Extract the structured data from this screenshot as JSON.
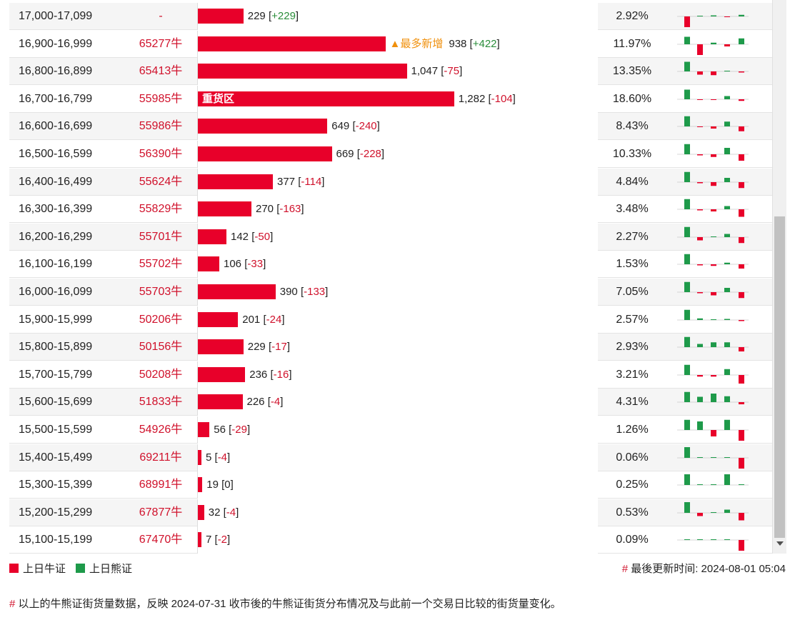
{
  "rows": [
    {
      "range": "17,000-17,099",
      "code": "-",
      "value": "229",
      "change": "+229",
      "pct": "2.92%",
      "bar": 0.051,
      "tag": "",
      "label": "",
      "spark": [
        -1,
        0,
        0.1,
        -0.05,
        0.15
      ]
    },
    {
      "range": "16,900-16,999",
      "code": "65277牛",
      "value": "938",
      "change": "+422",
      "pct": "11.97%",
      "bar": 0.21,
      "tag": "▲最多新增",
      "label": "",
      "spark": [
        0.7,
        -1,
        0.15,
        -0.2,
        0.55
      ]
    },
    {
      "range": "16,800-16,899",
      "code": "65413牛",
      "value": "1,047",
      "change": "-75",
      "pct": "13.35%",
      "bar": 0.234,
      "tag": "",
      "label": "",
      "spark": [
        0.9,
        -0.3,
        -0.35,
        0.05,
        -0.1
      ]
    },
    {
      "range": "16,700-16,799",
      "code": "55985牛",
      "value": "1,282",
      "change": "-104",
      "pct": "18.60%",
      "bar": 0.287,
      "tag": "",
      "label": "重货区",
      "spark": [
        0.9,
        -0.05,
        -0.05,
        0.3,
        -0.15
      ]
    },
    {
      "range": "16,600-16,699",
      "code": "55986牛",
      "value": "649",
      "change": "-240",
      "pct": "8.43%",
      "bar": 0.145,
      "tag": "",
      "label": "",
      "spark": [
        0.95,
        -0.05,
        -0.2,
        0.45,
        -0.45
      ]
    },
    {
      "range": "16,500-16,599",
      "code": "56390牛",
      "value": "669",
      "change": "-228",
      "pct": "10.33%",
      "bar": 0.15,
      "tag": "",
      "label": "",
      "spark": [
        0.95,
        -0.1,
        -0.25,
        0.6,
        -0.6
      ]
    },
    {
      "range": "16,400-16,499",
      "code": "55624牛",
      "value": "377",
      "change": "-114",
      "pct": "4.84%",
      "bar": 0.084,
      "tag": "",
      "label": "",
      "spark": [
        0.95,
        -0.1,
        -0.35,
        0.4,
        -0.55
      ]
    },
    {
      "range": "16,300-16,399",
      "code": "55829牛",
      "value": "270",
      "change": "-163",
      "pct": "3.48%",
      "bar": 0.06,
      "tag": "",
      "label": "",
      "spark": [
        0.95,
        -0.1,
        -0.2,
        0.3,
        -0.7
      ]
    },
    {
      "range": "16,200-16,299",
      "code": "55701牛",
      "value": "142",
      "change": "-50",
      "pct": "2.27%",
      "bar": 0.032,
      "tag": "",
      "label": "",
      "spark": [
        0.95,
        -0.3,
        0,
        0.3,
        -0.55
      ]
    },
    {
      "range": "16,100-16,199",
      "code": "55702牛",
      "value": "106",
      "change": "-33",
      "pct": "1.53%",
      "bar": 0.024,
      "tag": "",
      "label": "",
      "spark": [
        0.95,
        -0.1,
        -0.15,
        0.15,
        -0.4
      ]
    },
    {
      "range": "16,000-16,099",
      "code": "55703牛",
      "value": "390",
      "change": "-133",
      "pct": "7.05%",
      "bar": 0.087,
      "tag": "",
      "label": "",
      "spark": [
        0.95,
        -0.1,
        -0.3,
        0.4,
        -0.55
      ]
    },
    {
      "range": "15,900-15,999",
      "code": "50206牛",
      "value": "201",
      "change": "-24",
      "pct": "2.57%",
      "bar": 0.045,
      "tag": "",
      "label": "",
      "spark": [
        0.95,
        0.15,
        0.05,
        0.1,
        -0.1
      ]
    },
    {
      "range": "15,800-15,899",
      "code": "50156牛",
      "value": "229",
      "change": "-17",
      "pct": "2.93%",
      "bar": 0.051,
      "tag": "",
      "label": "",
      "spark": [
        0.95,
        0.3,
        0.45,
        0.45,
        -0.4
      ]
    },
    {
      "range": "15,700-15,799",
      "code": "50208牛",
      "value": "236",
      "change": "-16",
      "pct": "3.21%",
      "bar": 0.053,
      "tag": "",
      "label": "",
      "spark": [
        0.95,
        -0.15,
        -0.15,
        0.55,
        -0.8
      ]
    },
    {
      "range": "15,600-15,699",
      "code": "51833牛",
      "value": "226",
      "change": "-4",
      "pct": "4.31%",
      "bar": 0.05,
      "tag": "",
      "label": "",
      "spark": [
        0.95,
        0.5,
        0.8,
        0.55,
        -0.2
      ]
    },
    {
      "range": "15,500-15,599",
      "code": "54926牛",
      "value": "56",
      "change": "-29",
      "pct": "1.26%",
      "bar": 0.013,
      "tag": "",
      "label": "",
      "spark": [
        0.95,
        0.8,
        -0.6,
        0.95,
        -1
      ]
    },
    {
      "range": "15,400-15,499",
      "code": "69211牛",
      "value": "5",
      "change": "-4",
      "pct": "0.06%",
      "bar": 0.004,
      "tag": "",
      "label": "",
      "spark": [
        1,
        0,
        0,
        0,
        -1
      ]
    },
    {
      "range": "15,300-15,399",
      "code": "68991牛",
      "value": "19",
      "change": "0",
      "pct": "0.25%",
      "bar": 0.005,
      "tag": "",
      "label": "",
      "spark": [
        1,
        0,
        0,
        1,
        0
      ]
    },
    {
      "range": "15,200-15,299",
      "code": "67877牛",
      "value": "32",
      "change": "-4",
      "pct": "0.53%",
      "bar": 0.007,
      "tag": "",
      "label": "",
      "spark": [
        1,
        -0.3,
        0,
        0.3,
        -0.7
      ]
    },
    {
      "range": "15,100-15,199",
      "code": "67470牛",
      "value": "7",
      "change": "-2",
      "pct": "0.09%",
      "bar": 0.004,
      "tag": "",
      "label": "",
      "spark": [
        0,
        0,
        0,
        0,
        -1
      ]
    }
  ],
  "legend": {
    "bull": "上日牛证",
    "bear": "上日熊证"
  },
  "updated": {
    "hash": "#",
    "text": "最後更新时间: 2024-08-01 05:04"
  },
  "footnote": {
    "hash": "#",
    "text": "以上的牛熊证街货量数据，反映 2024-07-31 收市後的牛熊证街货分布情况及与此前一个交易日比较的街货量变化。"
  },
  "colors": {
    "bull": "#e8002a",
    "bear": "#1e9a4a",
    "neg_text": "#d0112b",
    "pos_text": "#2a8d3a",
    "tag": "#f0900c"
  }
}
